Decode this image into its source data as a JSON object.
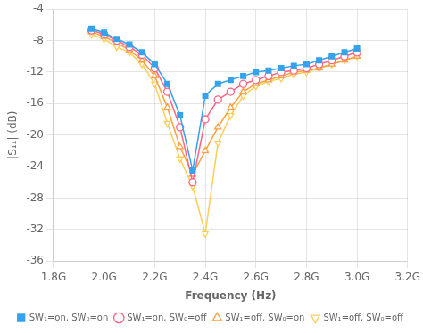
{
  "chart_data": {
    "type": "line",
    "xlabel": "Frequency (Hz)",
    "ylabel": "|S₁₁| (dB)",
    "xlim": [
      1800000000.0,
      3200000000.0
    ],
    "ylim": [
      -36,
      -4
    ],
    "xticks": [
      {
        "value": 1800000000.0,
        "label": "1.8G"
      },
      {
        "value": 2000000000.0,
        "label": "2.0G"
      },
      {
        "value": 2200000000.0,
        "label": "2.2G"
      },
      {
        "value": 2400000000.0,
        "label": "2.4G"
      },
      {
        "value": 2600000000.0,
        "label": "2.6G"
      },
      {
        "value": 2800000000.0,
        "label": "2.8G"
      },
      {
        "value": 3000000000.0,
        "label": "3.0G"
      },
      {
        "value": 3200000000.0,
        "label": "3.2G"
      }
    ],
    "yticks": [
      -4,
      -8,
      -12,
      -16,
      -20,
      -24,
      -28,
      -32,
      -36
    ],
    "grid": true,
    "legend": "lower right",
    "x": [
      1950000000.0,
      2000000000.0,
      2050000000.0,
      2100000000.0,
      2150000000.0,
      2200000000.0,
      2250000000.0,
      2300000000.0,
      2350000000.0,
      2400000000.0,
      2450000000.0,
      2500000000.0,
      2550000000.0,
      2600000000.0,
      2650000000.0,
      2700000000.0,
      2750000000.0,
      2800000000.0,
      2850000000.0,
      2900000000.0,
      2950000000.0,
      3000000000.0
    ],
    "series": [
      {
        "name": "SW₁=on, SW₀=on",
        "marker": "square",
        "line_style": "solid",
        "values": [
          -6.5,
          -7.0,
          -7.8,
          -8.5,
          -9.5,
          -11.0,
          -13.5,
          -17.5,
          -24.5,
          -15.0,
          -13.5,
          -13.0,
          -12.5,
          -12.0,
          -11.8,
          -11.5,
          -11.2,
          -11.0,
          -10.5,
          -10.0,
          -9.5,
          -9.0
        ]
      },
      {
        "name": "SW₁=on, SW₀=off",
        "marker": "circle-open",
        "line_style": "solid",
        "values": [
          -6.7,
          -7.2,
          -8.0,
          -8.8,
          -9.8,
          -11.5,
          -14.5,
          -19.0,
          -26.0,
          -18.0,
          -15.5,
          -14.5,
          -13.5,
          -13.0,
          -12.5,
          -12.0,
          -11.8,
          -11.5,
          -11.0,
          -10.5,
          -10.0,
          -9.5
        ]
      },
      {
        "name": "SW₁=off, SW₀=on",
        "marker": "triangle-up-open",
        "line_style": "solid",
        "values": [
          -6.9,
          -7.5,
          -8.3,
          -9.2,
          -10.5,
          -12.5,
          -16.5,
          -21.5,
          -25.0,
          -22.0,
          -19.0,
          -16.5,
          -14.5,
          -13.5,
          -13.0,
          -12.5,
          -12.0,
          -11.8,
          -11.5,
          -11.0,
          -10.5,
          -10.0
        ]
      },
      {
        "name": "SW₁=off, SW₀=off",
        "marker": "triangle-down-open",
        "line_style": "solid",
        "values": [
          -7.2,
          -7.8,
          -8.8,
          -9.5,
          -11.0,
          -13.5,
          -18.5,
          -23.0,
          -26.5,
          -32.5,
          -21.0,
          -17.5,
          -15.0,
          -13.8,
          -13.2,
          -12.8,
          -12.3,
          -12.0,
          -11.5,
          -11.0,
          -10.5,
          -10.0
        ]
      }
    ]
  }
}
